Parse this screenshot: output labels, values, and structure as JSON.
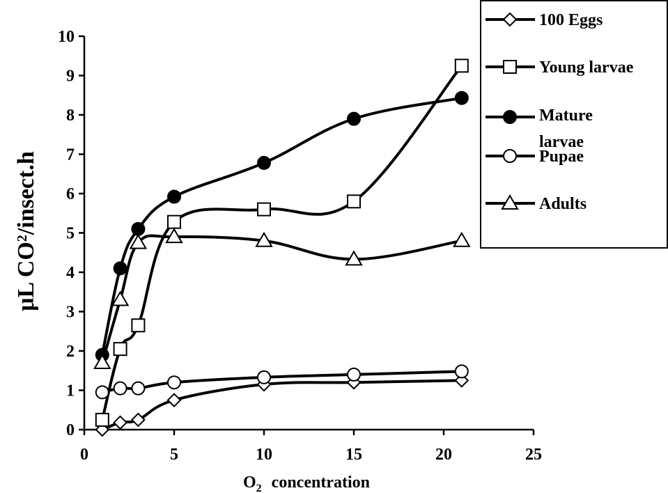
{
  "chart_data": {
    "type": "line",
    "xlabel_main": "O",
    "xlabel_sub": "2",
    "xlabel_rest": "concentration",
    "ylabel_main": "μL CO",
    "ylabel_sub": "2",
    "ylabel_rest": "/insect.h",
    "xlim": [
      0,
      25
    ],
    "ylim": [
      0,
      10
    ],
    "x_ticks": [
      "0",
      "5",
      "10",
      "15",
      "20",
      "25"
    ],
    "y_ticks": [
      "0",
      "1",
      "2",
      "3",
      "4",
      "5",
      "6",
      "7",
      "8",
      "9",
      "10"
    ],
    "x": [
      1,
      2,
      3,
      5,
      10,
      15,
      21
    ],
    "series": [
      {
        "name": "100 Eggs",
        "marker": "diamond",
        "fill": "#ffffff",
        "values": [
          0.0,
          0.18,
          0.25,
          0.75,
          1.15,
          1.2,
          1.25
        ]
      },
      {
        "name": "Young larvae",
        "marker": "square",
        "fill": "#ffffff",
        "values": [
          0.25,
          2.05,
          2.65,
          5.28,
          5.6,
          5.8,
          9.25
        ]
      },
      {
        "name": "Mature larvae",
        "marker": "circle",
        "fill": "#000000",
        "values": [
          1.9,
          4.1,
          5.1,
          5.92,
          6.78,
          7.9,
          8.43
        ]
      },
      {
        "name": "Pupae",
        "marker": "circle",
        "fill": "#ffffff",
        "values": [
          0.95,
          1.05,
          1.05,
          1.2,
          1.33,
          1.4,
          1.48
        ]
      },
      {
        "name": "Adults",
        "marker": "triangle",
        "fill": "#ffffff",
        "values": [
          1.7,
          3.3,
          4.75,
          4.9,
          4.8,
          4.33,
          4.8
        ]
      }
    ],
    "legend_position": "top-right",
    "legend_labels": [
      "100 Eggs",
      "Young larvae",
      "Mature",
      "larvae",
      "Pupae",
      "Adults"
    ],
    "grid": false,
    "line_color": "#000000"
  }
}
